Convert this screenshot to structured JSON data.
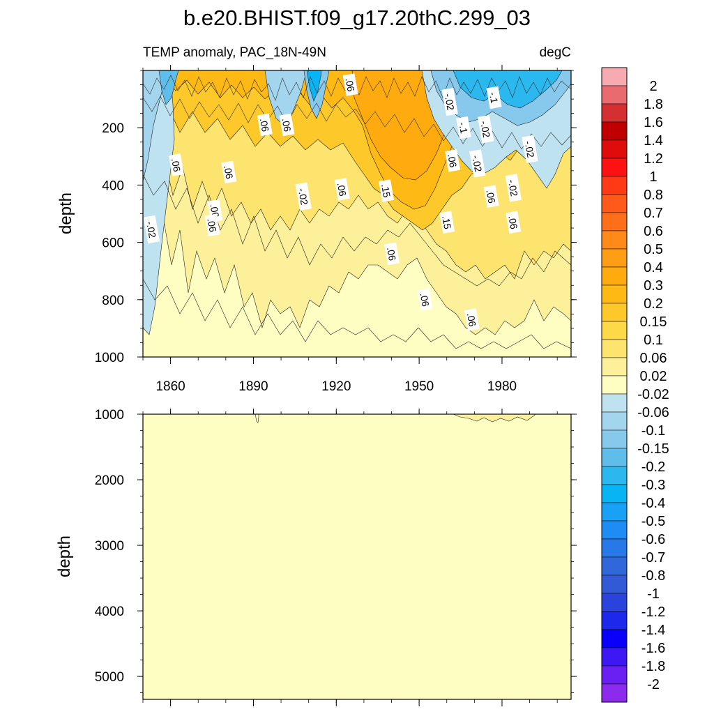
{
  "chart_data": {
    "type": "heatmap",
    "subtype": "filled-contour (time vs depth)",
    "title": "b.e20.BHIST.f09_g17.20thC.299_03",
    "variable_label": "TEMP anomaly, PAC_18N-49N",
    "units": "degC",
    "xlabel": "",
    "x_range": [
      1850,
      2005
    ],
    "x_ticks": [
      "1860",
      "1890",
      "1920",
      "1950",
      "1980"
    ],
    "x_tick_values": [
      1860,
      1890,
      1920,
      1950,
      1980
    ],
    "colorbar": {
      "levels": [
        "2",
        "1.8",
        "1.6",
        "1.4",
        "1.2",
        "1",
        "0.8",
        "0.7",
        "0.6",
        "0.5",
        "0.4",
        "0.3",
        "0.2",
        "0.15",
        "0.1",
        "0.06",
        "0.02",
        "-0.02",
        "-0.06",
        "-0.1",
        "-0.15",
        "-0.2",
        "-0.3",
        "-0.4",
        "-0.5",
        "-0.6",
        "-0.7",
        "-0.8",
        "-1",
        "-1.2",
        "-1.4",
        "-1.6",
        "-1.8",
        "-2"
      ],
      "colors": [
        "#f7aab0",
        "#e96b70",
        "#d43032",
        "#c00000",
        "#e00c0c",
        "#fc1212",
        "#ff3a14",
        "#ff5a1a",
        "#ff6f1a",
        "#ff8a1a",
        "#ff9e14",
        "#ffab0f",
        "#ffb915",
        "#fdc82a",
        "#fdd847",
        "#fde46e",
        "#fdf09a",
        "#fffec2",
        "#bee2f0",
        "#a3d5ef",
        "#87c9ec",
        "#5ebdeb",
        "#2ab8ee",
        "#08b4f3",
        "#19a2f5",
        "#1f8bf5",
        "#2778e8",
        "#3068dc",
        "#325ad6",
        "#2b43dc",
        "#1e28ec",
        "#0a00fa",
        "#3d18f3",
        "#6a1ff3",
        "#8c2bee"
      ]
    },
    "panels": [
      {
        "name": "upper",
        "ylabel": "depth",
        "ylim": [
          0,
          1000
        ],
        "y_ticks": [
          "200",
          "400",
          "600",
          "800",
          "1000"
        ],
        "y_tick_values": [
          200,
          400,
          600,
          800,
          1000
        ],
        "contour_labels": [
          {
            "text": ".06",
            "year": 1925,
            "depth": 50
          },
          {
            "text": "-.02",
            "year": 1961,
            "depth": 110
          },
          {
            "text": "-.1",
            "year": 1977,
            "depth": 95
          },
          {
            "text": "-.1",
            "year": 1966,
            "depth": 200
          },
          {
            "text": ".06",
            "year": 1894,
            "depth": 190
          },
          {
            "text": ".06",
            "year": 1902,
            "depth": 190
          },
          {
            "text": "-.02",
            "year": 1974,
            "depth": 205
          },
          {
            "text": "-.02",
            "year": 1990,
            "depth": 275
          },
          {
            "text": ".06",
            "year": 1862,
            "depth": 330
          },
          {
            "text": ".06",
            "year": 1881,
            "depth": 355
          },
          {
            "text": ".06",
            "year": 1962,
            "depth": 315
          },
          {
            "text": "-.02",
            "year": 1971,
            "depth": 325
          },
          {
            "text": ".06",
            "year": 1922,
            "depth": 415
          },
          {
            "text": ".15",
            "year": 1938,
            "depth": 420
          },
          {
            "text": "-.02",
            "year": 1908,
            "depth": 440
          },
          {
            "text": "-.02",
            "year": 1984,
            "depth": 410
          },
          {
            "text": ".06",
            "year": 1876,
            "depth": 490
          },
          {
            "text": ".06",
            "year": 1875,
            "depth": 540
          },
          {
            "text": ".06",
            "year": 1976,
            "depth": 440
          },
          {
            "text": ".06",
            "year": 1984,
            "depth": 530
          },
          {
            "text": ".15",
            "year": 1960,
            "depth": 530
          },
          {
            "text": "-.02",
            "year": 1853,
            "depth": 555
          },
          {
            "text": ".06",
            "year": 1940,
            "depth": 640
          },
          {
            "text": ".06",
            "year": 1952,
            "depth": 800
          },
          {
            "text": ".06",
            "year": 1969,
            "depth": 870
          }
        ]
      },
      {
        "name": "lower",
        "ylabel": "depth",
        "ylim": [
          1000,
          5350
        ],
        "y_ticks": [
          "1000",
          "2000",
          "3000",
          "4000",
          "5000"
        ],
        "y_tick_values": [
          1000,
          2000,
          3000,
          4000,
          5000
        ]
      }
    ]
  }
}
